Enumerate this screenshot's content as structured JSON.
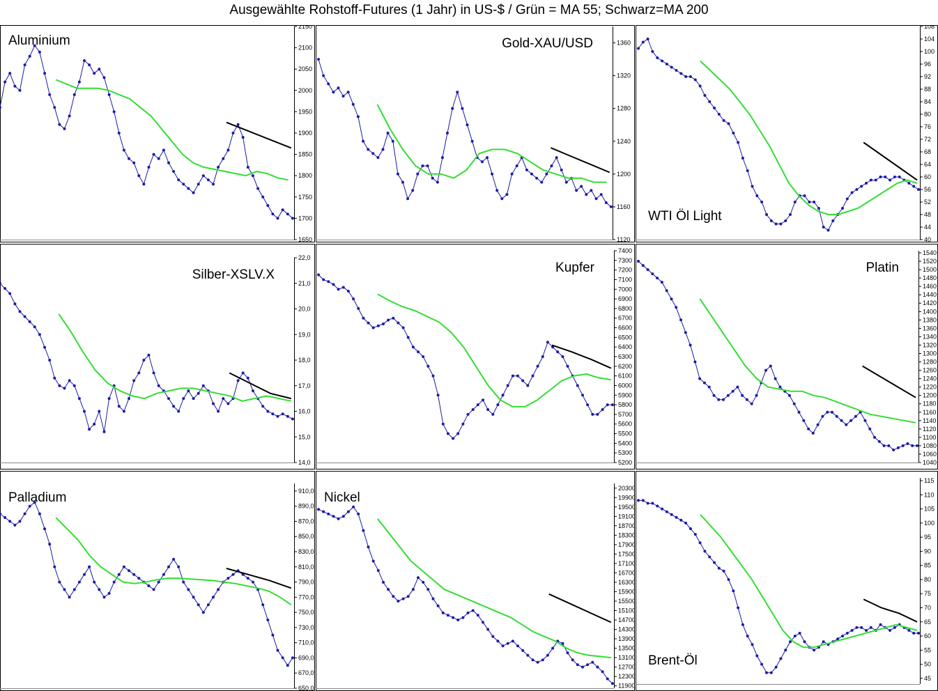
{
  "title": "Ausgewählte Rohstoff-Futures (1 Jahr) in US-$ / Grün = MA 55; Schwarz=MA 200",
  "colors": {
    "price": "#1a1aa6",
    "ma55": "#33dd33",
    "ma200": "#000000",
    "frame": "#000000",
    "background": "#ffffff"
  },
  "chart_data": [
    {
      "type": "line",
      "title": "Aluminium",
      "label_pos": "top-left",
      "ylim": [
        1650,
        2150
      ],
      "yticks": [
        "2150",
        "2100",
        "2050",
        "2000",
        "1950",
        "1900",
        "1850",
        "1800",
        "1750",
        "1700",
        "1650"
      ],
      "price": [
        1960,
        2020,
        2040,
        2010,
        2000,
        2060,
        2080,
        2105,
        2090,
        2040,
        1990,
        1960,
        1920,
        1910,
        1940,
        1990,
        2020,
        2070,
        2060,
        2040,
        2050,
        2030,
        1990,
        1950,
        1900,
        1860,
        1840,
        1830,
        1800,
        1780,
        1820,
        1850,
        1840,
        1860,
        1830,
        1810,
        1790,
        1780,
        1770,
        1760,
        1780,
        1800,
        1790,
        1780,
        1820,
        1840,
        1860,
        1900,
        1920,
        1890,
        1820,
        1800,
        1770,
        1750,
        1730,
        1710,
        1700,
        1720,
        1710,
        1700
      ],
      "ma55": [
        2025,
        2015,
        2005,
        2005,
        2005,
        2000,
        1990,
        1980,
        1960,
        1940,
        1910,
        1880,
        1850,
        1830,
        1820,
        1815,
        1810,
        1805,
        1800,
        1810,
        1805,
        1795,
        1790
      ],
      "ma200": [
        1925,
        1905,
        1885,
        1865
      ]
    },
    {
      "type": "line",
      "title": "Gold-XAU/USD",
      "label_pos": "top-right",
      "ylim": [
        1120,
        1380
      ],
      "yticks": [
        "1360",
        "1320",
        "1280",
        "1240",
        "1200",
        "1160",
        "1120"
      ],
      "price": [
        1340,
        1320,
        1310,
        1300,
        1305,
        1295,
        1300,
        1285,
        1270,
        1240,
        1230,
        1225,
        1220,
        1230,
        1250,
        1240,
        1200,
        1190,
        1170,
        1180,
        1200,
        1210,
        1210,
        1195,
        1190,
        1220,
        1250,
        1280,
        1300,
        1280,
        1260,
        1240,
        1220,
        1215,
        1220,
        1200,
        1180,
        1170,
        1175,
        1200,
        1210,
        1220,
        1205,
        1200,
        1195,
        1190,
        1200,
        1210,
        1220,
        1205,
        1190,
        1195,
        1180,
        1185,
        1175,
        1180,
        1170,
        1175,
        1165,
        1160
      ],
      "ma55": [
        1285,
        1255,
        1230,
        1210,
        1200,
        1200,
        1195,
        1205,
        1225,
        1230,
        1230,
        1225,
        1215,
        1205,
        1200,
        1195,
        1195,
        1190,
        1190
      ],
      "ma200": [
        1232,
        1222,
        1212,
        1202
      ]
    },
    {
      "type": "line",
      "title": "WTI Öl Light",
      "label_pos": "bottom-left",
      "ylim": [
        40,
        108
      ],
      "yticks": [
        "108",
        "104",
        "100",
        "96",
        "92",
        "88",
        "84",
        "80",
        "76",
        "72",
        "68",
        "64",
        "60",
        "56",
        "52",
        "48",
        "44",
        "40"
      ],
      "price": [
        101,
        103,
        104,
        100,
        98,
        97,
        96,
        95,
        94,
        93,
        92,
        92,
        91,
        89,
        86,
        84,
        82,
        80,
        78,
        77,
        74,
        71,
        66,
        62,
        57,
        54,
        52,
        48,
        46,
        45,
        45,
        46,
        48,
        52,
        54,
        54,
        52,
        52,
        50,
        44,
        43,
        46,
        48,
        50,
        53,
        55,
        56,
        57,
        58,
        59,
        59,
        60,
        60,
        59,
        60,
        60,
        59,
        58,
        57,
        56
      ],
      "ma55": [
        97,
        94,
        91,
        88,
        84,
        80,
        75,
        70,
        64,
        58,
        54,
        51,
        49,
        48,
        48,
        49,
        50,
        52,
        54,
        56,
        58,
        59,
        58
      ],
      "ma200": [
        71,
        67,
        63,
        59
      ]
    },
    {
      "type": "line",
      "title": "Silber-XSLV.X",
      "label_pos": "top-right",
      "ylim": [
        14,
        22
      ],
      "yticks": [
        "22,0",
        "21,0",
        "20,0",
        "19,0",
        "18,0",
        "17,0",
        "16,0",
        "15,0",
        "14,0"
      ],
      "price": [
        21.0,
        20.8,
        20.6,
        20.2,
        19.9,
        19.7,
        19.5,
        19.3,
        19.0,
        18.5,
        18.0,
        17.3,
        17.0,
        16.9,
        17.2,
        17.0,
        16.5,
        16.0,
        15.3,
        15.5,
        16.0,
        15.2,
        16.5,
        17.0,
        16.2,
        16.0,
        16.5,
        17.2,
        17.5,
        18.0,
        18.2,
        17.5,
        17.0,
        16.8,
        16.5,
        16.2,
        16.0,
        16.5,
        16.8,
        16.5,
        16.7,
        17.0,
        16.8,
        16.3,
        16.0,
        16.5,
        16.3,
        16.5,
        17.2,
        17.5,
        17.3,
        16.8,
        16.5,
        16.2,
        16.0,
        15.9,
        15.8,
        15.9,
        15.8,
        15.7
      ],
      "ma55": [
        19.8,
        19.1,
        18.3,
        17.6,
        17.1,
        16.8,
        16.6,
        16.5,
        16.7,
        16.8,
        16.9,
        16.9,
        16.8,
        16.7,
        16.6,
        16.4,
        16.5,
        16.6,
        16.5,
        16.4
      ],
      "ma200": [
        17.5,
        17.1,
        16.7,
        16.5
      ]
    },
    {
      "type": "line",
      "title": "Kupfer",
      "label_pos": "top-right",
      "ylim": [
        5200,
        7400
      ],
      "yticks": [
        "7400",
        "7300",
        "7200",
        "7100",
        "7000",
        "6900",
        "6800",
        "6700",
        "6600",
        "6500",
        "6400",
        "6300",
        "6200",
        "6100",
        "6000",
        "5900",
        "5800",
        "5700",
        "5600",
        "5500",
        "5400",
        "5300",
        "5200"
      ],
      "price": [
        7150,
        7100,
        7080,
        7050,
        7000,
        7020,
        6980,
        6900,
        6800,
        6700,
        6650,
        6600,
        6620,
        6640,
        6680,
        6700,
        6650,
        6600,
        6500,
        6400,
        6350,
        6300,
        6200,
        6100,
        5900,
        5600,
        5500,
        5450,
        5500,
        5600,
        5700,
        5750,
        5800,
        5850,
        5750,
        5700,
        5800,
        5900,
        6000,
        6100,
        6100,
        6050,
        6000,
        6100,
        6200,
        6300,
        6450,
        6400,
        6350,
        6300,
        6200,
        6100,
        6000,
        5900,
        5800,
        5700,
        5700,
        5750,
        5800,
        5800
      ],
      "ma55": [
        6950,
        6880,
        6820,
        6780,
        6720,
        6660,
        6550,
        6400,
        6200,
        6000,
        5850,
        5780,
        5780,
        5850,
        5950,
        6050,
        6100,
        6120,
        6080,
        6060
      ],
      "ma200": [
        6420,
        6350,
        6270,
        6180
      ]
    },
    {
      "type": "line",
      "title": "Platin",
      "label_pos": "top-right",
      "ylim": [
        1040,
        1545
      ],
      "yticks": [
        "1540",
        "1520",
        "1500",
        "1480",
        "1460",
        "1440",
        "1420",
        "1400",
        "1380",
        "1360",
        "1340",
        "1320",
        "1300",
        "1280",
        "1260",
        "1240",
        "1220",
        "1200",
        "1180",
        "1160",
        "1140",
        "1120",
        "1100",
        "1080",
        "1060",
        "1040"
      ],
      "price": [
        1520,
        1510,
        1500,
        1490,
        1480,
        1470,
        1450,
        1430,
        1410,
        1380,
        1350,
        1320,
        1280,
        1240,
        1230,
        1220,
        1200,
        1190,
        1190,
        1200,
        1210,
        1220,
        1200,
        1190,
        1180,
        1200,
        1230,
        1260,
        1270,
        1240,
        1220,
        1210,
        1200,
        1180,
        1160,
        1140,
        1120,
        1110,
        1130,
        1150,
        1160,
        1160,
        1150,
        1140,
        1130,
        1140,
        1150,
        1160,
        1140,
        1120,
        1100,
        1090,
        1080,
        1080,
        1070,
        1075,
        1080,
        1085,
        1080,
        1080
      ],
      "ma55": [
        1430,
        1390,
        1350,
        1310,
        1270,
        1240,
        1220,
        1215,
        1210,
        1210,
        1200,
        1195,
        1185,
        1175,
        1165,
        1155,
        1150,
        1145,
        1140,
        1135
      ],
      "ma200": [
        1270,
        1245,
        1220,
        1195
      ]
    },
    {
      "type": "line",
      "title": "Palladium",
      "label_pos": "top-left",
      "ylim": [
        650,
        920
      ],
      "yticks": [
        "910,0",
        "890,0",
        "870,0",
        "850,0",
        "830,0",
        "810,0",
        "790,0",
        "770,0",
        "750,0",
        "730,0",
        "710,0",
        "690,0",
        "670,0",
        "650,0"
      ],
      "price": [
        880,
        875,
        870,
        865,
        870,
        880,
        890,
        895,
        880,
        860,
        840,
        810,
        790,
        780,
        770,
        780,
        790,
        800,
        810,
        790,
        780,
        770,
        775,
        790,
        800,
        810,
        805,
        800,
        795,
        790,
        785,
        780,
        790,
        800,
        810,
        820,
        810,
        790,
        780,
        770,
        760,
        750,
        760,
        770,
        780,
        790,
        795,
        800,
        805,
        800,
        795,
        790,
        780,
        760,
        740,
        720,
        700,
        690,
        680,
        690
      ],
      "ma55": [
        875,
        860,
        845,
        825,
        810,
        800,
        790,
        788,
        790,
        793,
        795,
        795,
        794,
        793,
        792,
        790,
        788,
        785,
        782,
        778,
        770,
        760
      ],
      "ma200": [
        808,
        800,
        792,
        782
      ]
    },
    {
      "type": "line",
      "title": "Nickel",
      "label_pos": "top-left",
      "ylim": [
        11800,
        20500
      ],
      "yticks": [
        "20300",
        "19900",
        "19500",
        "19100",
        "18700",
        "18300",
        "17900",
        "17500",
        "17100",
        "16700",
        "16300",
        "15900",
        "15500",
        "15100",
        "14700",
        "14300",
        "13900",
        "13500",
        "13100",
        "12700",
        "12300",
        "11900"
      ],
      "price": [
        19400,
        19300,
        19200,
        19100,
        19000,
        19100,
        19300,
        19500,
        19200,
        18500,
        17800,
        17200,
        16800,
        16300,
        16000,
        15700,
        15500,
        15600,
        15700,
        16000,
        16500,
        16300,
        16000,
        15600,
        15300,
        15000,
        14900,
        14800,
        14700,
        14800,
        15000,
        15100,
        14900,
        14600,
        14300,
        14000,
        13800,
        13600,
        13700,
        13800,
        13600,
        13400,
        13200,
        13000,
        12900,
        13000,
        13200,
        13500,
        13800,
        13700,
        13300,
        13000,
        12800,
        12700,
        12800,
        12900,
        12700,
        12500,
        12200,
        12000
      ],
      "ma55": [
        19000,
        18400,
        17800,
        17200,
        16800,
        16400,
        16000,
        15800,
        15600,
        15400,
        15200,
        15000,
        14800,
        14500,
        14200,
        14000,
        13800,
        13500,
        13300,
        13200,
        13150,
        13100
      ],
      "ma200": [
        15800,
        15400,
        15000,
        14600
      ]
    },
    {
      "type": "line",
      "title": "Brent-Öl",
      "label_pos": "bottom-left",
      "ylim": [
        43,
        116
      ],
      "yticks": [
        "115",
        "110",
        "105",
        "100",
        "95",
        "90",
        "85",
        "80",
        "75",
        "70",
        "65",
        "60",
        "55",
        "50",
        "45"
      ],
      "price": [
        108,
        108,
        107,
        107,
        106,
        105,
        104,
        103,
        102,
        101,
        100,
        98,
        96,
        93,
        90,
        88,
        86,
        84,
        83,
        80,
        76,
        70,
        64,
        60,
        57,
        53,
        50,
        47,
        47,
        49,
        52,
        55,
        58,
        60,
        61,
        58,
        56,
        55,
        56,
        58,
        57,
        58,
        59,
        60,
        61,
        62,
        63,
        63,
        62,
        63,
        62,
        64,
        63,
        62,
        63,
        64,
        63,
        62,
        61,
        61
      ],
      "ma55": [
        103,
        99,
        95,
        90,
        85,
        80,
        74,
        68,
        62,
        58,
        56,
        56,
        57,
        58,
        59,
        60,
        61,
        62,
        63,
        64,
        63,
        62
      ],
      "ma200": [
        73,
        70,
        68,
        65
      ]
    }
  ]
}
